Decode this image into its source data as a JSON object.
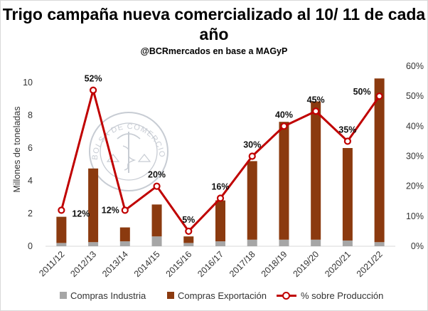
{
  "chart_data": {
    "type": "bar",
    "title": "Trigo campaña nueva comercializado al 10/ 11 de cada año",
    "subtitle": "@BCRmercados en base a MAGyP",
    "ylabel": "Millones de toneladas",
    "ylim": [
      0,
      11
    ],
    "yticks": [
      "0",
      "2",
      "4",
      "6",
      "8",
      "10"
    ],
    "ytick_values": [
      0,
      2,
      4,
      6,
      8,
      10
    ],
    "y2lim": [
      0,
      0.6
    ],
    "y2ticks": [
      "0%",
      "10%",
      "20%",
      "30%",
      "40%",
      "50%",
      "60%"
    ],
    "y2tick_values": [
      0,
      0.1,
      0.2,
      0.3,
      0.4,
      0.5,
      0.6
    ],
    "categories": [
      "2011/12",
      "2012/13",
      "2013/14",
      "2014/15",
      "2015/16",
      "2016/17",
      "2017/18",
      "2018/19",
      "2019/20",
      "2020/21",
      "2021/22"
    ],
    "series": [
      {
        "name": "Compras Industria",
        "kind": "bar",
        "color": "#a6a6a6",
        "values": [
          0.2,
          0.25,
          0.3,
          0.6,
          0.2,
          0.3,
          0.4,
          0.4,
          0.4,
          0.35,
          0.25
        ]
      },
      {
        "name": "Compras Exportación",
        "kind": "bar",
        "color": "#8b3a0f",
        "values": [
          1.6,
          4.5,
          0.85,
          1.95,
          0.4,
          2.5,
          4.8,
          7.2,
          8.45,
          5.65,
          10.0
        ]
      },
      {
        "name": "% sobre Producción",
        "kind": "line",
        "axis": "right",
        "color": "#c00000",
        "values": [
          0.12,
          0.52,
          0.12,
          0.2,
          0.05,
          0.16,
          0.3,
          0.4,
          0.45,
          0.35,
          0.5
        ]
      }
    ],
    "data_labels": [
      "12%",
      "52%",
      "12%",
      "20%",
      "5%",
      "16%",
      "30%",
      "40%",
      "45%",
      "35%",
      "50%"
    ],
    "watermark_text": "BOLSA DE COMERCIO DE ROSARIO",
    "legend_position": "bottom"
  }
}
